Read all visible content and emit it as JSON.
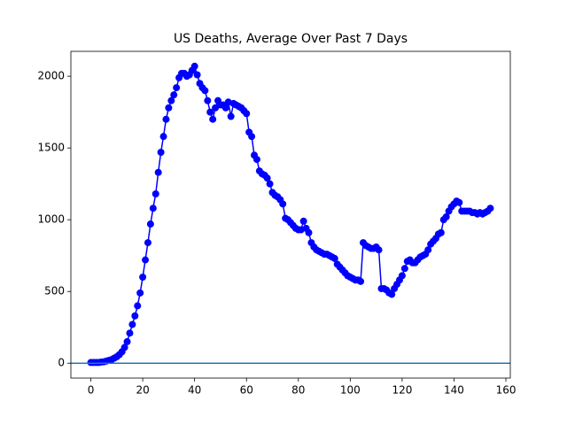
{
  "chart_data": {
    "type": "line",
    "title": "US Deaths, Average Over Past 7 Days",
    "x": [
      0,
      1,
      2,
      3,
      4,
      5,
      6,
      7,
      8,
      9,
      10,
      11,
      12,
      13,
      14,
      15,
      16,
      17,
      18,
      19,
      20,
      21,
      22,
      23,
      24,
      25,
      26,
      27,
      28,
      29,
      30,
      31,
      32,
      33,
      34,
      35,
      36,
      37,
      38,
      39,
      40,
      41,
      42,
      43,
      44,
      45,
      46,
      47,
      48,
      49,
      50,
      51,
      52,
      53,
      54,
      55,
      56,
      57,
      58,
      59,
      60,
      61,
      62,
      63,
      64,
      65,
      66,
      67,
      68,
      69,
      70,
      71,
      72,
      73,
      74,
      75,
      76,
      77,
      78,
      79,
      80,
      81,
      82,
      83,
      84,
      85,
      86,
      87,
      88,
      89,
      90,
      91,
      92,
      93,
      94,
      95,
      96,
      97,
      98,
      99,
      100,
      101,
      102,
      103,
      104,
      105,
      106,
      107,
      108,
      109,
      110,
      111,
      112,
      113,
      114,
      115,
      116,
      117,
      118,
      119,
      120,
      121,
      122,
      123,
      124,
      125,
      126,
      127,
      128,
      129,
      130,
      131,
      132,
      133,
      134,
      135,
      136,
      137,
      138,
      139,
      140,
      141,
      142,
      143,
      144,
      145,
      146,
      147,
      148,
      149,
      150,
      151,
      152,
      153,
      154
    ],
    "series": [
      {
        "color": "#0000ff",
        "values": [
          5,
          5,
          5,
          5,
          8,
          10,
          15,
          20,
          25,
          35,
          45,
          60,
          80,
          110,
          150,
          210,
          270,
          330,
          400,
          490,
          600,
          720,
          840,
          970,
          1080,
          1180,
          1330,
          1470,
          1580,
          1700,
          1780,
          1830,
          1870,
          1920,
          1990,
          2020,
          2020,
          2000,
          2010,
          2040,
          2070,
          2010,
          1950,
          1920,
          1900,
          1830,
          1750,
          1700,
          1780,
          1830,
          1800,
          1800,
          1780,
          1820,
          1720,
          1810,
          1800,
          1790,
          1780,
          1760,
          1740,
          1610,
          1580,
          1450,
          1420,
          1340,
          1320,
          1310,
          1290,
          1250,
          1190,
          1170,
          1160,
          1140,
          1110,
          1010,
          1000,
          980,
          960,
          940,
          930,
          930,
          990,
          940,
          910,
          840,
          810,
          790,
          780,
          770,
          760,
          760,
          750,
          740,
          730,
          690,
          670,
          650,
          630,
          610,
          600,
          590,
          580,
          580,
          570,
          840,
          820,
          810,
          800,
          800,
          810,
          790,
          520,
          520,
          510,
          490,
          480,
          520,
          550,
          580,
          610,
          660,
          710,
          720,
          700,
          700,
          720,
          740,
          750,
          760,
          790,
          830,
          850,
          870,
          900,
          910,
          1000,
          1020,
          1060,
          1090,
          1110,
          1130,
          1120,
          1060,
          1060,
          1060,
          1060,
          1050,
          1050,
          1040,
          1050,
          1040,
          1050,
          1060,
          1080
        ]
      }
    ],
    "reference_line": {
      "value": 0,
      "color": "#1f77b4"
    },
    "xlim": [
      -7.7,
      161.7
    ],
    "xticks": [
      0,
      20,
      40,
      60,
      80,
      100,
      120,
      140,
      160
    ],
    "ylim": [
      -103.5,
      2173.5
    ],
    "yticks": [
      0,
      500,
      1000,
      1500,
      2000
    ],
    "grid": false
  }
}
